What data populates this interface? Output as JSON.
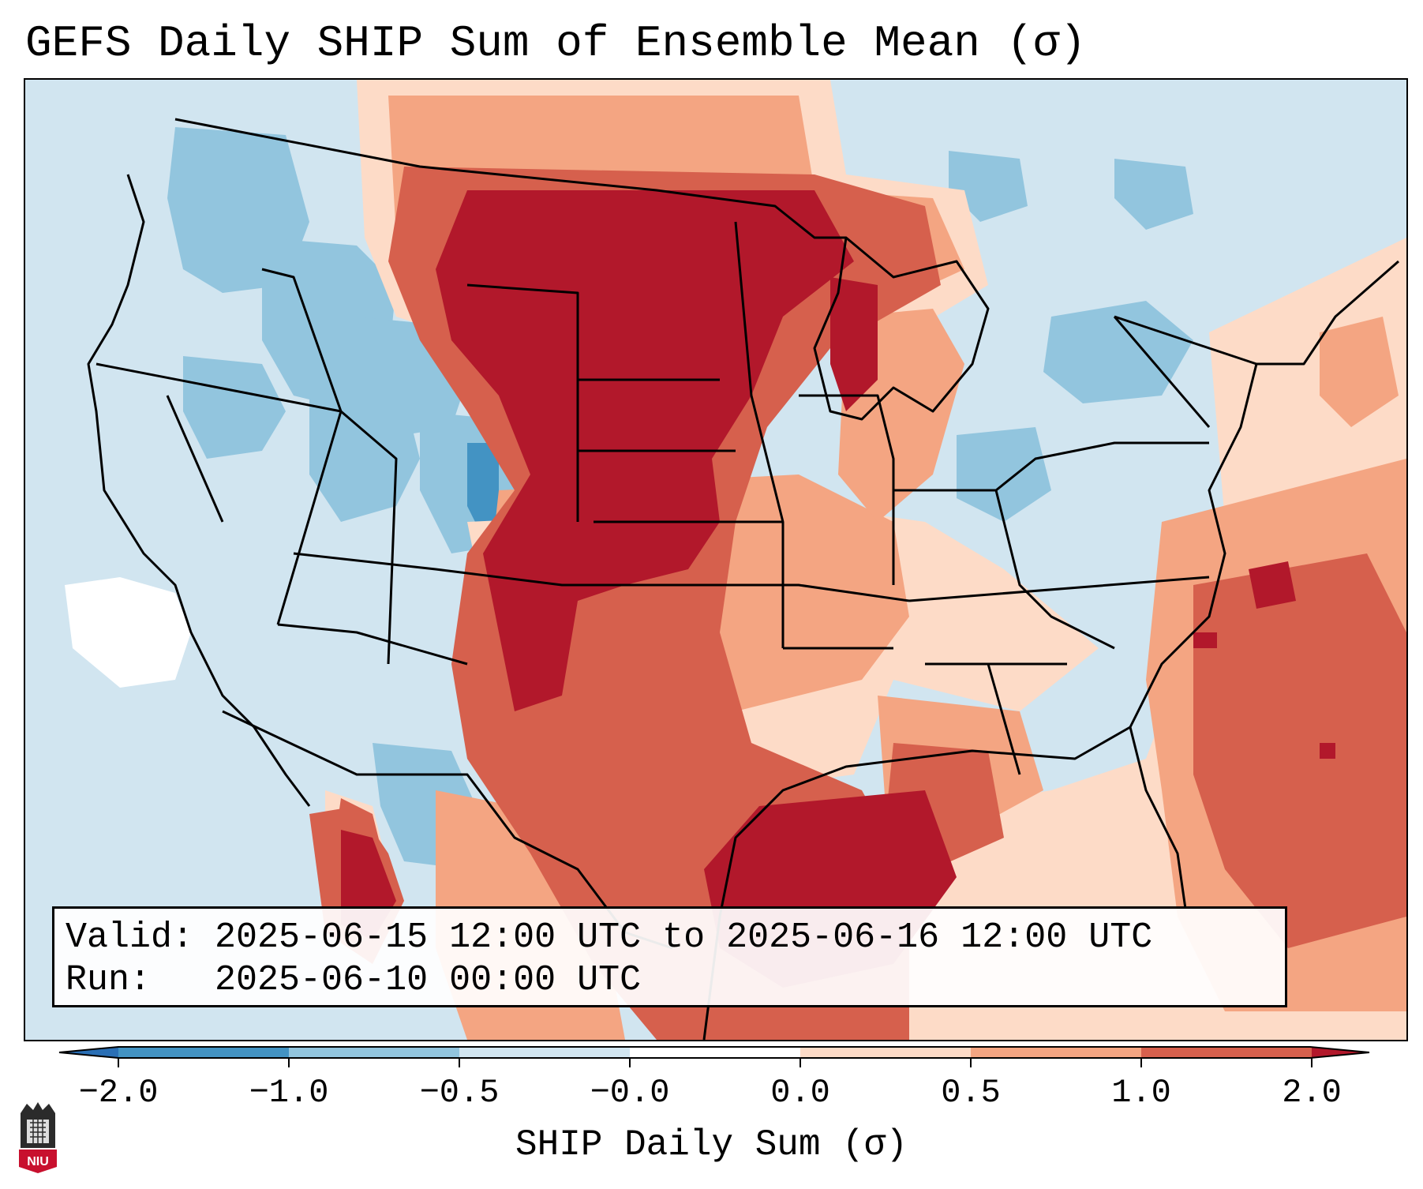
{
  "title": "GEFS Daily SHIP Sum of Ensemble Mean (σ)",
  "info_box": {
    "valid_line": "Valid: 2025-06-15 12:00 UTC to 2025-06-16 12:00 UTC",
    "run_line": "Run:   2025-06-10 00:00 UTC"
  },
  "colorbar": {
    "label": "SHIP Daily Sum (σ)",
    "ticks": [
      "−2.0",
      "−1.0",
      "−0.5",
      "−0.0",
      "0.0",
      "0.5",
      "1.0",
      "2.0"
    ],
    "bins": [
      {
        "range": "< -2.0",
        "color": "#2a6fb5"
      },
      {
        "range": "-2.0 to -1.0",
        "color": "#4393c3"
      },
      {
        "range": "-1.0 to -0.5",
        "color": "#92c5de"
      },
      {
        "range": "-0.5 to -0.0",
        "color": "#d1e5f0"
      },
      {
        "range": "-0.0 to 0.0",
        "color": "#ffffff"
      },
      {
        "range": "0.0 to 0.5",
        "color": "#fddbc7"
      },
      {
        "range": "0.5 to 1.0",
        "color": "#f4a582"
      },
      {
        "range": "1.0 to 2.0",
        "color": "#d6604d"
      },
      {
        "range": "> 2.0",
        "color": "#b2182b"
      }
    ]
  },
  "logo": {
    "text": "NIU"
  }
}
